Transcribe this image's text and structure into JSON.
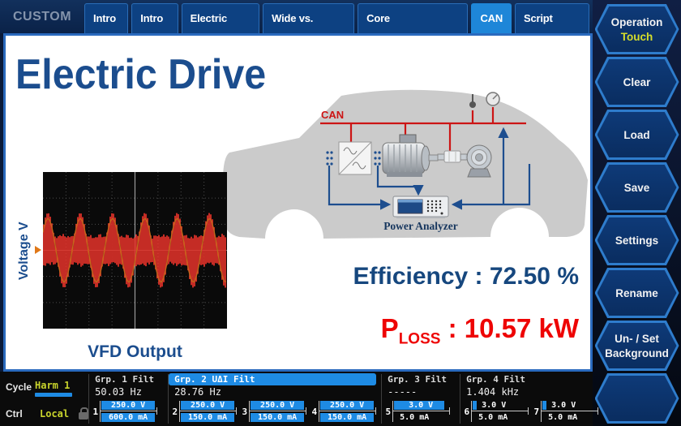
{
  "window": {
    "label": "CUSTOM"
  },
  "tabs": [
    {
      "label": "Intro I",
      "active": false
    },
    {
      "label": "Intro II",
      "active": false
    },
    {
      "label": "Electric Drive",
      "active": false
    },
    {
      "label": "Wide vs. Narrow",
      "active": false
    },
    {
      "label": "Core Characteristics",
      "active": false
    },
    {
      "label": "CAN",
      "active": true
    },
    {
      "label": "Script Editor",
      "active": false
    }
  ],
  "sidebar": {
    "buttons": [
      {
        "line1": "Operation",
        "line2": "Touch"
      },
      {
        "line1": "Clear"
      },
      {
        "line1": "Load"
      },
      {
        "line1": "Save"
      },
      {
        "line1": "Settings"
      },
      {
        "line1": "Rename"
      },
      {
        "line1": "Un- / Set",
        "line2": "Background"
      },
      {
        "line1": ""
      }
    ]
  },
  "main": {
    "title": "Electric Drive",
    "scope": {
      "ylabel": "Voltage V",
      "caption": "VFD Output",
      "waveform": "pwm-modulated-sine",
      "cycles": 5.7,
      "color": "#e6332a",
      "fundamental_color": "#c06a1a"
    },
    "diagram": {
      "bus_label": "CAN",
      "device_label": "Power Analyzer"
    },
    "efficiency_label": "Efficiency :",
    "efficiency_value": "72.50 %",
    "ploss_symbol": "P",
    "ploss_subscript": "LOSS",
    "ploss_sep": " : ",
    "ploss_value": "10.57 kW"
  },
  "statusbar": {
    "cycle_label": "Cycle",
    "cycle_value": "Harm 1",
    "ctrl_label": "Ctrl",
    "ctrl_value": "Local",
    "groups": [
      {
        "name": "Grp. 1 Filt",
        "freq": "50.03 Hz",
        "highlight": false
      },
      {
        "name": "Grp. 2 UΔI Filt",
        "freq": "28.76 Hz",
        "highlight": true
      },
      {
        "name": "Grp. 3 Filt",
        "freq": "-----",
        "highlight": false
      },
      {
        "name": "Grp. 4 Filt",
        "freq": "1.404 kHz",
        "highlight": false
      }
    ],
    "channels": [
      {
        "num": "1",
        "voltage": "250.0 V",
        "current": "600.0 mA",
        "voltage_bar": "full",
        "current_bar": "full"
      },
      {
        "num": "2",
        "voltage": "250.0 V",
        "current": "150.0 mA",
        "voltage_bar": "full",
        "current_bar": "full"
      },
      {
        "num": "3",
        "voltage": "250.0 V",
        "current": "150.0 mA",
        "voltage_bar": "full",
        "current_bar": "full"
      },
      {
        "num": "4",
        "voltage": "250.0 V",
        "current": "150.0 mA",
        "voltage_bar": "full",
        "current_bar": "full"
      },
      {
        "num": "5",
        "voltage": "3.0 V",
        "current": "5.0 mA",
        "voltage_bar": "partial",
        "current_bar": "none"
      },
      {
        "num": "6",
        "voltage": "3.0 V",
        "current": "5.0 mA",
        "voltage_bar": "tick",
        "current_bar": "none"
      },
      {
        "num": "7",
        "voltage": "3.0 V",
        "current": "5.0 mA",
        "voltage_bar": "tick",
        "current_bar": "none"
      }
    ]
  },
  "colors": {
    "accent_blue": "#1e8be4",
    "active_tab": "#1e86d8",
    "navy_text": "#16477e",
    "status_yellow": "#c9d42c",
    "loss_red": "#ee0404",
    "can_bus_red": "#cc1515",
    "car_gray": "#cbcbcb"
  }
}
